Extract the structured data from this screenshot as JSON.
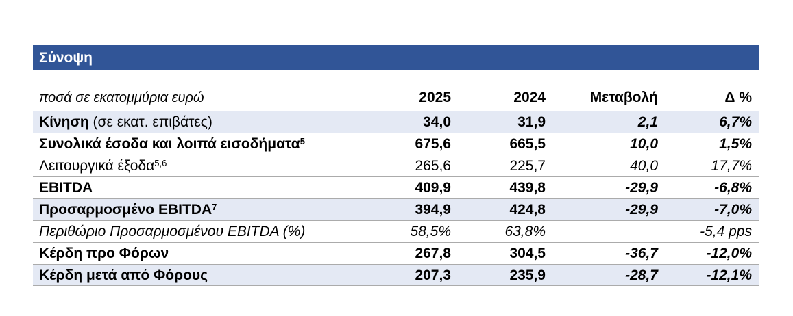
{
  "title_bar": {
    "title": "Σύνοψη"
  },
  "table": {
    "unit_label": "ποσά σε εκατομμύρια ευρώ",
    "columns": [
      "2025",
      "2024",
      "Μεταβολή",
      "Δ %"
    ],
    "rows": [
      {
        "name": "Κίνηση",
        "name_suffix": " (σε εκατ. επιβάτες)",
        "footnote": "",
        "y2025": "34,0",
        "y2024": "31,9",
        "change": "2,1",
        "delta": "6,7%"
      },
      {
        "name": "Συνολικά έσοδα και λοιπά εισοδήματα",
        "name_suffix": "",
        "footnote": "5",
        "y2025": "675,6",
        "y2024": "665,5",
        "change": "10,0",
        "delta": "1,5%"
      },
      {
        "name": "Λειτουργικά έξοδα",
        "name_suffix": "",
        "footnote": "5,6",
        "y2025": "265,6",
        "y2024": "225,7",
        "change": "40,0",
        "delta": "17,7%"
      },
      {
        "name": "EBITDA",
        "name_suffix": "",
        "footnote": "",
        "y2025": "409,9",
        "y2024": "439,8",
        "change": "-29,9",
        "delta": "-6,8%"
      },
      {
        "name": "Προσαρμοσμένο EBITDA",
        "name_suffix": "",
        "footnote": "7",
        "y2025": "394,9",
        "y2024": "424,8",
        "change": "-29,9",
        "delta": "-7,0%"
      },
      {
        "name": "Περιθώριο Προσαρμοσμένου EBITDA (%)",
        "name_suffix": "",
        "footnote": "",
        "y2025": "58,5%",
        "y2024": "63,8%",
        "change": "",
        "delta": "-5,4 pps"
      },
      {
        "name": "Κέρδη προ Φόρων",
        "name_suffix": "",
        "footnote": "",
        "y2025": "267,8",
        "y2024": "304,5",
        "change": "-36,7",
        "delta": "-12,0%"
      },
      {
        "name": "Κέρδη μετά από Φόρους",
        "name_suffix": "",
        "footnote": "",
        "y2025": "207,3",
        "y2024": "235,9",
        "change": "-28,7",
        "delta": "-12,1%"
      }
    ]
  },
  "colors": {
    "title_bar_bg": "#315597",
    "title_bar_text": "#ffffff",
    "shaded_row_bg": "#E4E9F4",
    "row_border": "#ABABAB",
    "text": "#000000"
  }
}
